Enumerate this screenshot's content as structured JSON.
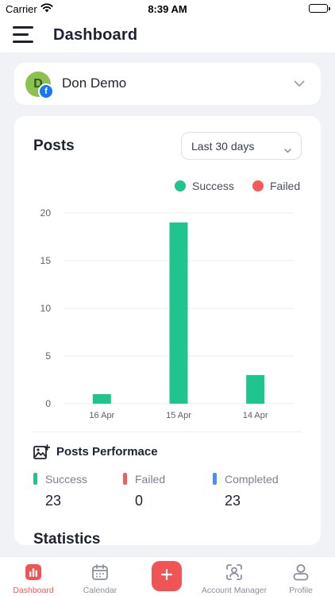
{
  "status_bar": {
    "carrier": "Carrier",
    "time": "8:39 AM"
  },
  "header": {
    "title": "Dashboard"
  },
  "account": {
    "initial": "D",
    "name": "Don Demo",
    "network_badge": "f"
  },
  "posts": {
    "title": "Posts",
    "range": "Last 30 days",
    "legend": {
      "success": "Success",
      "failed": "Failed"
    }
  },
  "colors": {
    "success": "#1fc48f",
    "failed": "#f25c5c",
    "completed": "#4b8df8",
    "accent": "#f05454"
  },
  "chart_data": {
    "type": "bar",
    "categories": [
      "16 Apr",
      "15 Apr",
      "14 Apr"
    ],
    "series": [
      {
        "name": "Success",
        "values": [
          1,
          19,
          3
        ]
      },
      {
        "name": "Failed",
        "values": [
          0,
          0,
          0
        ]
      }
    ],
    "ylim": [
      0,
      20
    ],
    "yticks": [
      "0",
      "5",
      "10",
      "15",
      "20"
    ],
    "grid": true,
    "legend_position": "top-right"
  },
  "performance": {
    "title": "Posts Performace",
    "stats": [
      {
        "label": "Success",
        "value": "23"
      },
      {
        "label": "Failed",
        "value": "0"
      },
      {
        "label": "Completed",
        "value": "23"
      }
    ]
  },
  "statistics": {
    "title": "Statistics"
  },
  "tabs": [
    {
      "label": "Dashboard",
      "icon": "dashboard-icon"
    },
    {
      "label": "Calendar",
      "icon": "calendar-icon"
    },
    {
      "label": "",
      "icon": "plus-icon"
    },
    {
      "label": "Account Manager",
      "icon": "account-manager-icon"
    },
    {
      "label": "Profile",
      "icon": "profile-icon"
    }
  ]
}
